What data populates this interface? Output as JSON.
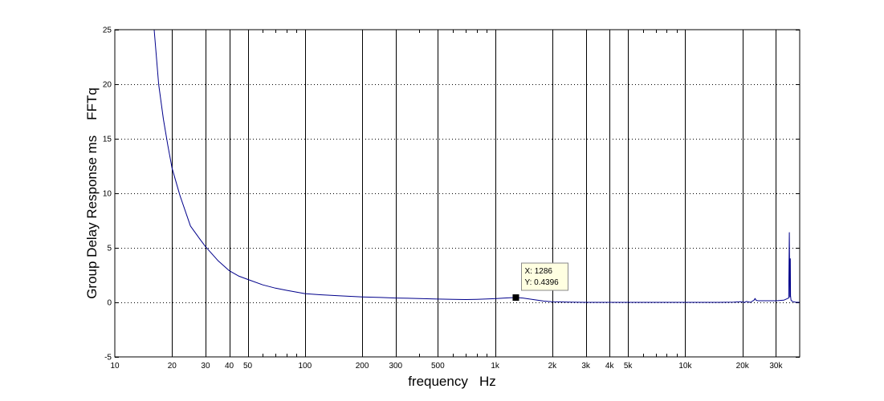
{
  "chart_data": {
    "type": "line",
    "title": "",
    "xlabel": "frequency   Hz",
    "ylabel": "Group Delay Response ms    FFTq",
    "xscale": "log",
    "xlim": [
      10,
      40000
    ],
    "ylim": [
      -5,
      25
    ],
    "x_ticks": [
      10,
      20,
      30,
      40,
      50,
      100,
      200,
      300,
      500,
      1000,
      2000,
      3000,
      4000,
      5000,
      10000,
      20000,
      30000
    ],
    "x_tick_labels": [
      "10",
      "20",
      "30",
      "40",
      "50",
      "100",
      "200",
      "300",
      "500",
      "1k",
      "2k",
      "3k",
      "4k",
      "5k",
      "10k",
      "20k",
      "30k"
    ],
    "y_ticks": [
      -5,
      0,
      5,
      10,
      15,
      20,
      25
    ],
    "y_tick_labels": [
      "-5",
      "0",
      "5",
      "10",
      "15",
      "20",
      "25"
    ],
    "grid": {
      "x": "solid",
      "y": "dotted"
    },
    "line_color": "#00008b",
    "series": [
      {
        "x": [
          16.1,
          17,
          18,
          19,
          20,
          22,
          25,
          28,
          30,
          35,
          40,
          45,
          50,
          60,
          70,
          80,
          100,
          120,
          150,
          200,
          250,
          300,
          400,
          500,
          600,
          700,
          800,
          1000,
          1100,
          1200,
          1286,
          1400,
          1600,
          1800,
          2000,
          2500,
          3000,
          4000,
          5000,
          7000,
          10000,
          15000,
          18000,
          19500,
          20500,
          21000,
          22000,
          23000,
          23300,
          23600,
          24000,
          25000,
          30000,
          33000,
          35000,
          35300,
          35500,
          35700,
          35800,
          36000,
          36500,
          37000,
          38000,
          40000
        ],
        "y": [
          25,
          20,
          16.8,
          14.4,
          12.3,
          9.8,
          7.0,
          5.8,
          5.1,
          3.8,
          2.9,
          2.4,
          2.1,
          1.6,
          1.3,
          1.1,
          0.8,
          0.7,
          0.6,
          0.5,
          0.45,
          0.4,
          0.35,
          0.3,
          0.27,
          0.26,
          0.28,
          0.34,
          0.38,
          0.42,
          0.4396,
          0.4,
          0.25,
          0.12,
          0.05,
          0.02,
          0.0,
          0.0,
          0.0,
          0.0,
          0.0,
          0.0,
          0.02,
          0.05,
          0.0,
          0.08,
          0.0,
          0.2,
          0.35,
          0.2,
          0.15,
          0.15,
          0.15,
          0.2,
          0.4,
          6.4,
          0.5,
          4.0,
          0.6,
          0.2,
          0.1,
          0.05,
          0.02,
          0.0
        ]
      }
    ],
    "datatip": {
      "x": 1286,
      "y": 0.4396,
      "x_text": "X: 1286",
      "y_text": "Y: 0.4396"
    }
  }
}
